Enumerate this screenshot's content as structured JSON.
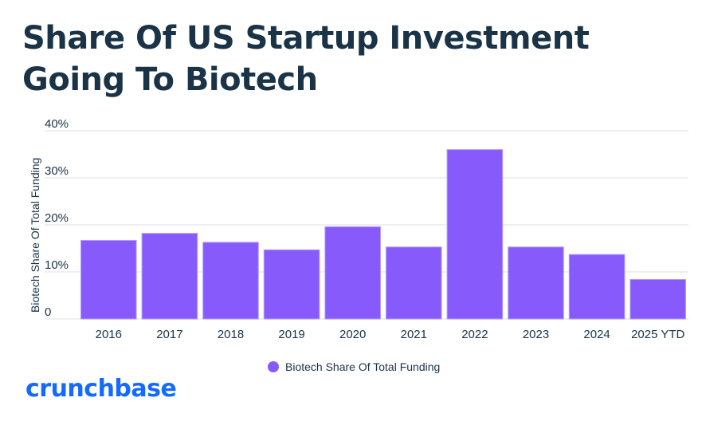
{
  "title": "Share Of US Startup Investment Going To Biotech",
  "logo": "crunchbase",
  "colors": {
    "bar": "#875bfb",
    "bar_stroke": "#b49cff",
    "grid": "#e8eaed",
    "text": "#1a3347",
    "logo": "#146aff"
  },
  "chart_data": {
    "type": "bar",
    "title": "Share Of US Startup Investment Going To Biotech",
    "xlabel": "",
    "ylabel": "Biotech Share Of Total Funding",
    "categories": [
      "2016",
      "2017",
      "2018",
      "2019",
      "2020",
      "2021",
      "2022",
      "2023",
      "2024",
      "2025 YTD"
    ],
    "series": [
      {
        "name": "Biotech Share Of Total Funding",
        "values": [
          16.7,
          18.2,
          16.3,
          14.7,
          19.6,
          15.3,
          36.0,
          15.3,
          13.7,
          8.4
        ]
      }
    ],
    "ylim": [
      0,
      40
    ],
    "yticks": [
      0,
      10,
      20,
      30,
      40
    ],
    "ytick_labels": [
      "0",
      "10%",
      "20%",
      "30%",
      "40%"
    ],
    "grid": true,
    "legend": "bottom-center"
  }
}
